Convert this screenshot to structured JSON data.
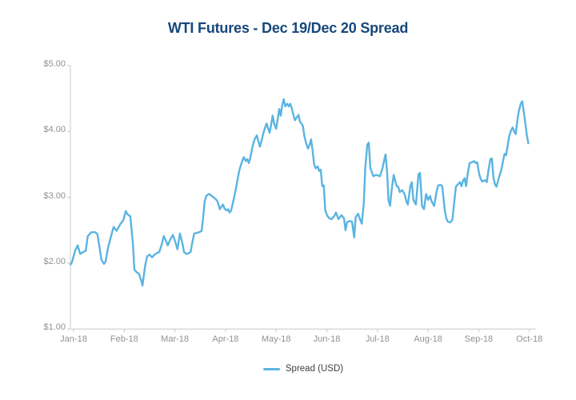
{
  "page": {
    "background": "#ffffff"
  },
  "header": {
    "title": "WTI Futures - Dec 19/Dec 20 Spread",
    "title_color": "#17477c"
  },
  "axis": {
    "color": "#c5c8cb",
    "tick_label_color": "#8f9194"
  },
  "legend": {
    "items": [
      {
        "label": "Spread (USD)",
        "color": "#5ab4e1"
      }
    ]
  },
  "chart_data": {
    "type": "line",
    "title": "WTI Futures - Dec 19/Dec 20 Spread",
    "xlabel": "",
    "ylabel": "",
    "grid": false,
    "legend_position": "bottom-center",
    "x_unit": "month-index (0 = Jan-18 ... 9 = Oct-18), daily spread values",
    "x_tick_labels": [
      "Jan-18",
      "Feb-18",
      "Mar-18",
      "Apr-18",
      "May-18",
      "Jun-18",
      "Jul-18",
      "Aug-18",
      "Sep-18",
      "Oct-18"
    ],
    "y_tick_labels": [
      "$1.00",
      "$2.00",
      "$3.00",
      "$4.00",
      "$5.00"
    ],
    "y_tick_values": [
      1,
      2,
      3,
      4,
      5
    ],
    "ylim": [
      1,
      5
    ],
    "series": [
      {
        "name": "Spread (USD)",
        "color": "#5ab4e1",
        "points": [
          [
            -0.06,
            1.98
          ],
          [
            -0.03,
            2.02
          ],
          [
            0.03,
            2.19
          ],
          [
            0.08,
            2.27
          ],
          [
            0.13,
            2.14
          ],
          [
            0.19,
            2.17
          ],
          [
            0.24,
            2.19
          ],
          [
            0.28,
            2.41
          ],
          [
            0.35,
            2.47
          ],
          [
            0.43,
            2.47
          ],
          [
            0.47,
            2.44
          ],
          [
            0.51,
            2.25
          ],
          [
            0.55,
            2.05
          ],
          [
            0.6,
            1.99
          ],
          [
            0.63,
            2.02
          ],
          [
            0.68,
            2.23
          ],
          [
            0.74,
            2.41
          ],
          [
            0.79,
            2.55
          ],
          [
            0.85,
            2.49
          ],
          [
            0.92,
            2.59
          ],
          [
            0.98,
            2.65
          ],
          [
            1.03,
            2.79
          ],
          [
            1.07,
            2.74
          ],
          [
            1.12,
            2.71
          ],
          [
            1.17,
            2.3
          ],
          [
            1.2,
            1.9
          ],
          [
            1.25,
            1.86
          ],
          [
            1.29,
            1.84
          ],
          [
            1.33,
            1.75
          ],
          [
            1.36,
            1.66
          ],
          [
            1.41,
            1.95
          ],
          [
            1.45,
            2.1
          ],
          [
            1.5,
            2.13
          ],
          [
            1.55,
            2.09
          ],
          [
            1.6,
            2.13
          ],
          [
            1.64,
            2.15
          ],
          [
            1.69,
            2.17
          ],
          [
            1.74,
            2.28
          ],
          [
            1.78,
            2.41
          ],
          [
            1.83,
            2.33
          ],
          [
            1.86,
            2.27
          ],
          [
            1.91,
            2.36
          ],
          [
            1.96,
            2.43
          ],
          [
            2.01,
            2.32
          ],
          [
            2.05,
            2.21
          ],
          [
            2.1,
            2.45
          ],
          [
            2.15,
            2.3
          ],
          [
            2.18,
            2.17
          ],
          [
            2.23,
            2.14
          ],
          [
            2.27,
            2.15
          ],
          [
            2.31,
            2.17
          ],
          [
            2.35,
            2.34
          ],
          [
            2.38,
            2.45
          ],
          [
            2.43,
            2.46
          ],
          [
            2.48,
            2.47
          ],
          [
            2.53,
            2.49
          ],
          [
            2.56,
            2.7
          ],
          [
            2.59,
            2.94
          ],
          [
            2.62,
            3.02
          ],
          [
            2.65,
            3.04
          ],
          [
            2.68,
            3.05
          ],
          [
            2.73,
            3.02
          ],
          [
            2.78,
            2.99
          ],
          [
            2.81,
            2.97
          ],
          [
            2.84,
            2.94
          ],
          [
            2.89,
            2.82
          ],
          [
            2.92,
            2.86
          ],
          [
            2.95,
            2.89
          ],
          [
            2.98,
            2.83
          ],
          [
            3.02,
            2.8
          ],
          [
            3.05,
            2.82
          ],
          [
            3.08,
            2.77
          ],
          [
            3.11,
            2.8
          ],
          [
            3.14,
            2.9
          ],
          [
            3.17,
            3.0
          ],
          [
            3.21,
            3.15
          ],
          [
            3.24,
            3.28
          ],
          [
            3.27,
            3.4
          ],
          [
            3.3,
            3.48
          ],
          [
            3.33,
            3.55
          ],
          [
            3.36,
            3.61
          ],
          [
            3.4,
            3.55
          ],
          [
            3.43,
            3.58
          ],
          [
            3.46,
            3.52
          ],
          [
            3.49,
            3.6
          ],
          [
            3.52,
            3.72
          ],
          [
            3.55,
            3.82
          ],
          [
            3.58,
            3.89
          ],
          [
            3.62,
            3.94
          ],
          [
            3.65,
            3.85
          ],
          [
            3.68,
            3.77
          ],
          [
            3.71,
            3.85
          ],
          [
            3.74,
            3.95
          ],
          [
            3.77,
            4.03
          ],
          [
            3.81,
            4.12
          ],
          [
            3.84,
            4.05
          ],
          [
            3.87,
            3.98
          ],
          [
            3.9,
            4.1
          ],
          [
            3.93,
            4.24
          ],
          [
            3.96,
            4.12
          ],
          [
            4.0,
            4.04
          ],
          [
            4.03,
            4.18
          ],
          [
            4.06,
            4.34
          ],
          [
            4.09,
            4.24
          ],
          [
            4.12,
            4.4
          ],
          [
            4.15,
            4.49
          ],
          [
            4.18,
            4.38
          ],
          [
            4.22,
            4.42
          ],
          [
            4.25,
            4.38
          ],
          [
            4.28,
            4.42
          ],
          [
            4.31,
            4.35
          ],
          [
            4.34,
            4.25
          ],
          [
            4.37,
            4.17
          ],
          [
            4.41,
            4.22
          ],
          [
            4.44,
            4.25
          ],
          [
            4.47,
            4.15
          ],
          [
            4.5,
            4.12
          ],
          [
            4.53,
            4.08
          ],
          [
            4.56,
            3.92
          ],
          [
            4.6,
            3.8
          ],
          [
            4.63,
            3.74
          ],
          [
            4.66,
            3.8
          ],
          [
            4.69,
            3.88
          ],
          [
            4.72,
            3.7
          ],
          [
            4.75,
            3.5
          ],
          [
            4.78,
            3.44
          ],
          [
            4.82,
            3.47
          ],
          [
            4.85,
            3.4
          ],
          [
            4.88,
            3.42
          ],
          [
            4.91,
            3.17
          ],
          [
            4.94,
            3.18
          ],
          [
            4.97,
            2.8
          ],
          [
            5.01,
            2.72
          ],
          [
            5.05,
            2.68
          ],
          [
            5.1,
            2.67
          ],
          [
            5.15,
            2.72
          ],
          [
            5.18,
            2.77
          ],
          [
            5.23,
            2.67
          ],
          [
            5.26,
            2.7
          ],
          [
            5.29,
            2.73
          ],
          [
            5.34,
            2.68
          ],
          [
            5.37,
            2.5
          ],
          [
            5.4,
            2.62
          ],
          [
            5.45,
            2.64
          ],
          [
            5.5,
            2.63
          ],
          [
            5.54,
            2.39
          ],
          [
            5.57,
            2.7
          ],
          [
            5.62,
            2.75
          ],
          [
            5.65,
            2.68
          ],
          [
            5.69,
            2.6
          ],
          [
            5.73,
            2.9
          ],
          [
            5.76,
            3.45
          ],
          [
            5.8,
            3.8
          ],
          [
            5.83,
            3.83
          ],
          [
            5.86,
            3.45
          ],
          [
            5.89,
            3.38
          ],
          [
            5.92,
            3.32
          ],
          [
            5.97,
            3.34
          ],
          [
            6.02,
            3.33
          ],
          [
            6.05,
            3.32
          ],
          [
            6.1,
            3.44
          ],
          [
            6.13,
            3.55
          ],
          [
            6.16,
            3.65
          ],
          [
            6.19,
            3.4
          ],
          [
            6.22,
            2.95
          ],
          [
            6.25,
            2.87
          ],
          [
            6.28,
            3.1
          ],
          [
            6.32,
            3.34
          ],
          [
            6.35,
            3.25
          ],
          [
            6.38,
            3.17
          ],
          [
            6.41,
            3.16
          ],
          [
            6.44,
            3.08
          ],
          [
            6.49,
            3.11
          ],
          [
            6.54,
            3.04
          ],
          [
            6.57,
            2.94
          ],
          [
            6.6,
            2.89
          ],
          [
            6.65,
            3.17
          ],
          [
            6.68,
            3.23
          ],
          [
            6.71,
            2.96
          ],
          [
            6.76,
            2.89
          ],
          [
            6.81,
            3.35
          ],
          [
            6.84,
            3.37
          ],
          [
            6.88,
            2.87
          ],
          [
            6.92,
            2.82
          ],
          [
            6.96,
            3.05
          ],
          [
            7.0,
            2.96
          ],
          [
            7.04,
            3.02
          ],
          [
            7.07,
            2.94
          ],
          [
            7.12,
            2.87
          ],
          [
            7.17,
            3.1
          ],
          [
            7.2,
            3.18
          ],
          [
            7.25,
            3.19
          ],
          [
            7.28,
            3.17
          ],
          [
            7.33,
            2.8
          ],
          [
            7.36,
            2.68
          ],
          [
            7.39,
            2.63
          ],
          [
            7.44,
            2.62
          ],
          [
            7.48,
            2.66
          ],
          [
            7.52,
            2.95
          ],
          [
            7.55,
            3.16
          ],
          [
            7.58,
            3.19
          ],
          [
            7.63,
            3.23
          ],
          [
            7.66,
            3.17
          ],
          [
            7.69,
            3.25
          ],
          [
            7.72,
            3.29
          ],
          [
            7.75,
            3.17
          ],
          [
            7.78,
            3.35
          ],
          [
            7.82,
            3.52
          ],
          [
            7.86,
            3.53
          ],
          [
            7.91,
            3.55
          ],
          [
            7.94,
            3.52
          ],
          [
            7.97,
            3.53
          ],
          [
            8.01,
            3.35
          ],
          [
            8.04,
            3.28
          ],
          [
            8.07,
            3.24
          ],
          [
            8.1,
            3.25
          ],
          [
            8.13,
            3.26
          ],
          [
            8.16,
            3.23
          ],
          [
            8.19,
            3.4
          ],
          [
            8.23,
            3.58
          ],
          [
            8.26,
            3.59
          ],
          [
            8.29,
            3.3
          ],
          [
            8.32,
            3.2
          ],
          [
            8.35,
            3.16
          ],
          [
            8.4,
            3.3
          ],
          [
            8.45,
            3.43
          ],
          [
            8.48,
            3.55
          ],
          [
            8.51,
            3.66
          ],
          [
            8.54,
            3.64
          ],
          [
            8.57,
            3.78
          ],
          [
            8.6,
            3.92
          ],
          [
            8.64,
            4.02
          ],
          [
            8.67,
            4.06
          ],
          [
            8.7,
            4.0
          ],
          [
            8.73,
            3.96
          ],
          [
            8.76,
            4.15
          ],
          [
            8.79,
            4.3
          ],
          [
            8.83,
            4.42
          ],
          [
            8.86,
            4.46
          ],
          [
            8.89,
            4.3
          ],
          [
            8.92,
            4.13
          ],
          [
            8.95,
            3.95
          ],
          [
            8.98,
            3.82
          ]
        ]
      }
    ]
  }
}
